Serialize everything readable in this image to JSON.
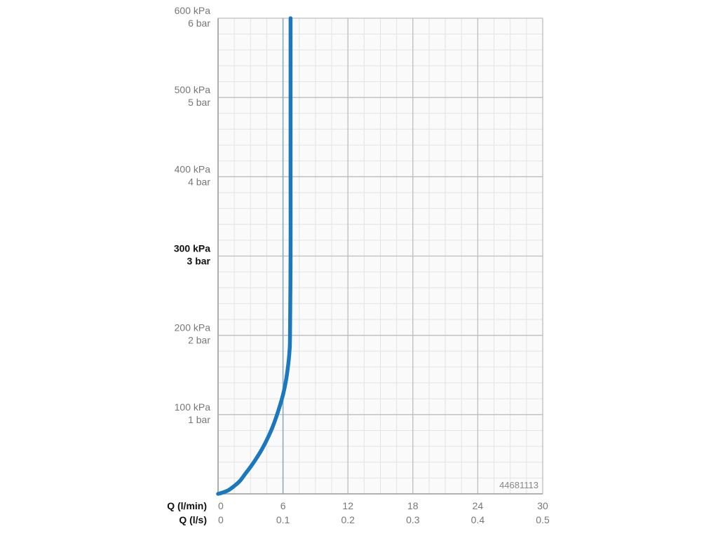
{
  "chart_data": {
    "type": "line",
    "xlabel": "Q (l/min)",
    "xlabel_secondary": "Q (l/s)",
    "xlim": [
      0,
      30
    ],
    "ylim": [
      0,
      600
    ],
    "x_ticks": [
      0,
      6,
      12,
      18,
      24,
      30
    ],
    "x_tick_labels": [
      "0",
      "6",
      "12",
      "18",
      "24",
      "30"
    ],
    "x_secondary_tick_labels": [
      "0",
      "0.1",
      "0.2",
      "0.3",
      "0.4",
      "0.5"
    ],
    "y_ticks": [
      100,
      200,
      300,
      400,
      500,
      600
    ],
    "y_tick_labels": [
      {
        "value": 600,
        "kpa": "600 kPa",
        "bar": "6 bar",
        "bold": false
      },
      {
        "value": 500,
        "kpa": "500 kPa",
        "bar": "5 bar",
        "bold": false
      },
      {
        "value": 400,
        "kpa": "400 kPa",
        "bar": "4 bar",
        "bold": false
      },
      {
        "value": 300,
        "kpa": "300 kPa",
        "bar": "3 bar",
        "bold": true
      },
      {
        "value": 200,
        "kpa": "200 kPa",
        "bar": "2 bar",
        "bold": false
      },
      {
        "value": 100,
        "kpa": "100 kPa",
        "bar": "1 bar",
        "bold": false
      }
    ],
    "grid": true,
    "minor_grid": true,
    "reference_line_x": 6,
    "code": "44681113",
    "series": [
      {
        "color": "#1a78be",
        "points": [
          [
            0,
            0
          ],
          [
            0.5,
            2
          ],
          [
            1,
            5
          ],
          [
            1.5,
            10
          ],
          [
            2,
            16
          ],
          [
            2.5,
            25
          ],
          [
            3,
            34
          ],
          [
            3.5,
            44
          ],
          [
            4,
            55
          ],
          [
            4.5,
            68
          ],
          [
            5,
            83
          ],
          [
            5.5,
            102
          ],
          [
            6,
            125
          ],
          [
            6.3,
            145
          ],
          [
            6.5,
            165
          ],
          [
            6.6,
            180
          ],
          [
            6.65,
            200
          ],
          [
            6.7,
            300
          ],
          [
            6.7,
            400
          ],
          [
            6.7,
            500
          ],
          [
            6.7,
            600
          ]
        ]
      }
    ]
  },
  "colors": {
    "major_grid": "#bdbdbd",
    "minor_grid": "#e3e3e3",
    "reference_line": "#8aa9bf",
    "series": "#1a78be"
  }
}
